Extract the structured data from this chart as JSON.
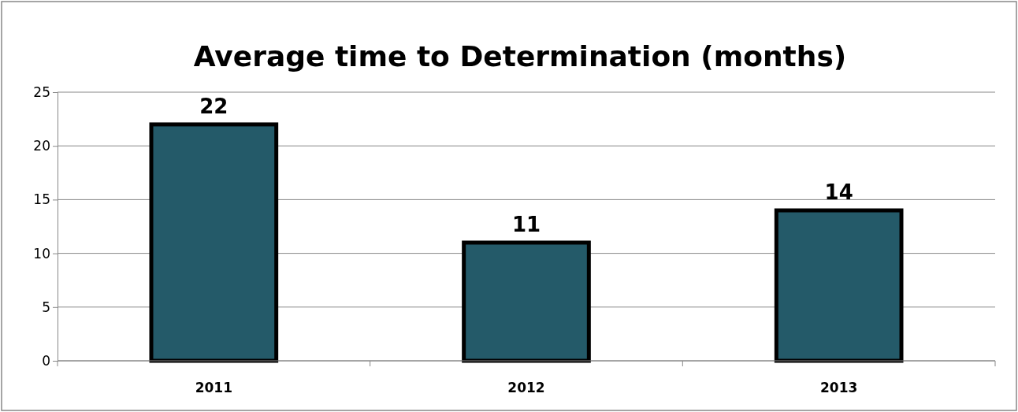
{
  "chart_data": {
    "type": "bar",
    "title": "Average time to Determination (months)",
    "categories": [
      "2011",
      "2012",
      "2013"
    ],
    "values": [
      22,
      11,
      14
    ],
    "color": "#245a69",
    "ylim": [
      0,
      25
    ],
    "yticks": [
      0,
      5,
      10,
      15,
      20,
      25
    ],
    "grid": "y",
    "data_labels": true
  }
}
